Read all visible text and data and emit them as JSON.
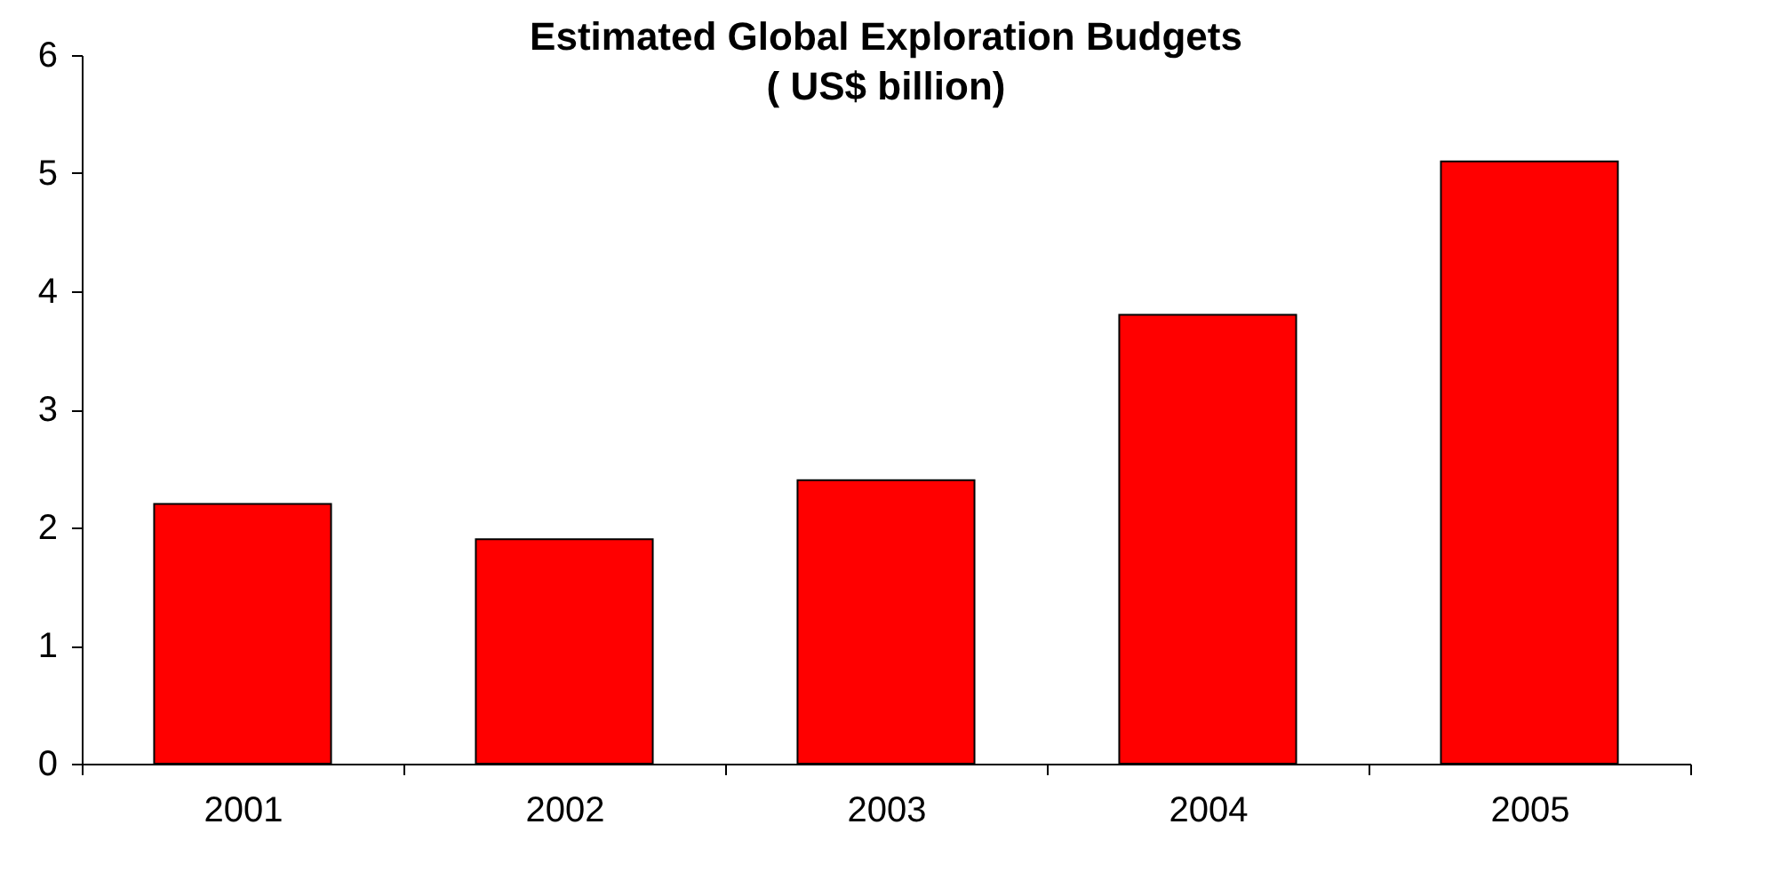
{
  "chart_data": {
    "type": "bar",
    "title": "Estimated Global Exploration Budgets\n( US$ billion)",
    "categories": [
      "2001",
      "2002",
      "2003",
      "2004",
      "2005"
    ],
    "values": [
      2.2,
      1.9,
      2.4,
      3.8,
      5.1
    ],
    "color": "#ff0000",
    "ylim": [
      0,
      6
    ],
    "yticks": [
      0,
      1,
      2,
      3,
      4,
      5,
      6
    ],
    "grid": false
  }
}
